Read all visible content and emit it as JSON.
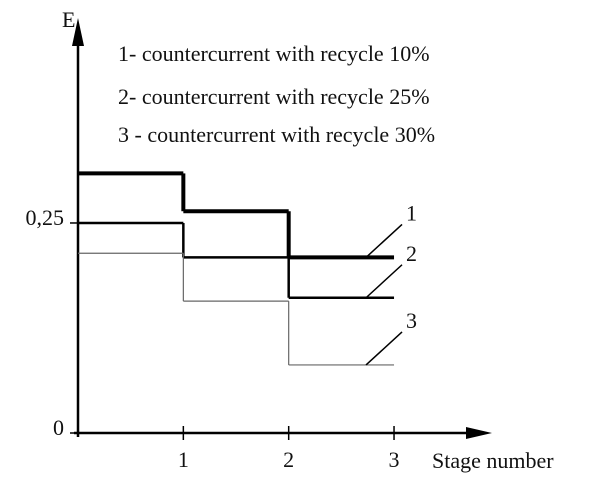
{
  "chart_data": {
    "type": "step",
    "y_label": "E",
    "x_label": "Stage number",
    "x": [
      1,
      2,
      3
    ],
    "xlim": [
      0,
      3.93
    ],
    "ylim": [
      0,
      0.494
    ],
    "xticks": [
      1,
      2,
      3
    ],
    "yticks": [
      0,
      {
        "value": 0.25,
        "label": "0,25"
      }
    ],
    "series": [
      {
        "name": "1",
        "description": "1- countercurrent with recycle 10%",
        "color": "#000000",
        "width": 4,
        "values": [
          0.309,
          0.264,
          0.209
        ]
      },
      {
        "name": "2",
        "description": "2- countercurrent with recycle 25%",
        "color": "#000000",
        "width": 2.5,
        "values": [
          0.25,
          0.209,
          0.161
        ]
      },
      {
        "name": "3",
        "description": "3 - countercurrent with recycle 30%",
        "color": "#666666",
        "width": 1.2,
        "values": [
          0.214,
          0.157,
          0.081
        ]
      }
    ]
  }
}
